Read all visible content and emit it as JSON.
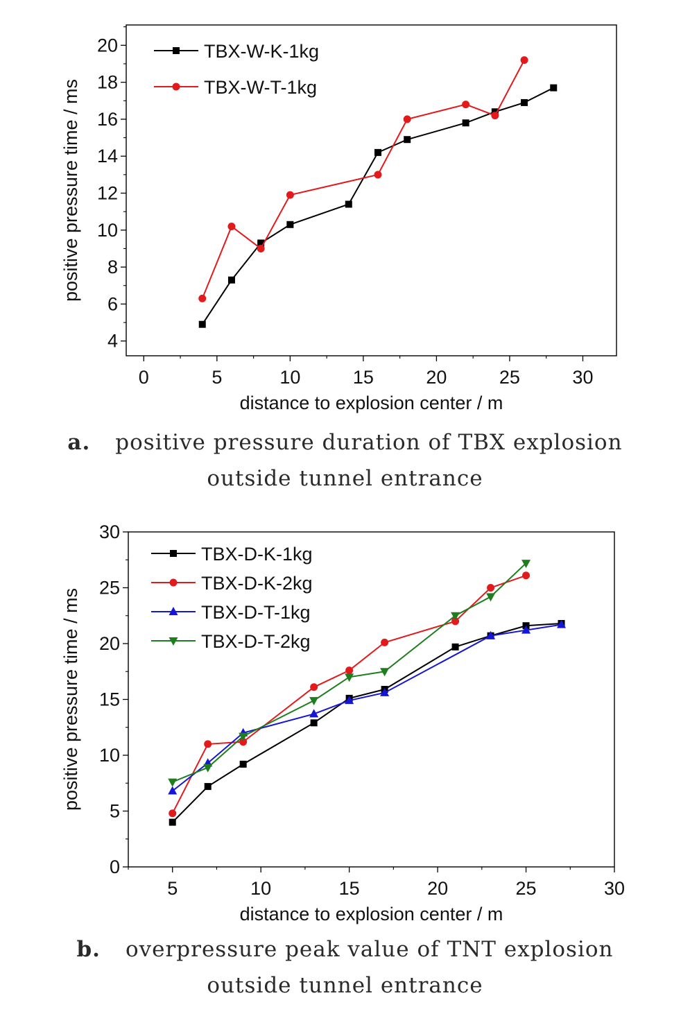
{
  "chart_data": [
    {
      "type": "line",
      "panel": "a",
      "xlabel": "distance to explosion center / m",
      "ylabel": "positive pressure time / ms",
      "xlim": [
        -1.2,
        32.3
      ],
      "ylim": [
        3.2,
        21.1
      ],
      "xticks": [
        0,
        5,
        10,
        15,
        20,
        25,
        30
      ],
      "yticks": [
        4,
        6,
        8,
        10,
        12,
        14,
        16,
        18,
        20
      ],
      "grid": false,
      "legend_position": "top-left",
      "series": [
        {
          "name": "TBX-W-K-1kg",
          "color": "#000000",
          "marker": "square",
          "x": [
            4,
            6,
            8,
            10,
            14,
            16,
            18,
            22,
            24,
            26,
            28
          ],
          "y": [
            4.9,
            7.3,
            9.3,
            10.3,
            11.4,
            14.2,
            14.9,
            15.8,
            16.4,
            16.9,
            17.7
          ]
        },
        {
          "name": "TBX-W-T-1kg",
          "color": "#e31a1c",
          "marker": "circle",
          "x": [
            4,
            6,
            8,
            10,
            16,
            18,
            22,
            24,
            26
          ],
          "y": [
            6.3,
            10.2,
            9.0,
            11.9,
            13.0,
            16.0,
            16.8,
            16.2,
            19.2
          ]
        }
      ]
    },
    {
      "type": "line",
      "panel": "b",
      "xlabel": "distance to explosion center / m",
      "ylabel": "positive pressure time / ms",
      "xlim": [
        2.5,
        30
      ],
      "ylim": [
        0,
        30
      ],
      "xticks": [
        5,
        10,
        15,
        20,
        25,
        30
      ],
      "yticks": [
        0,
        5,
        10,
        15,
        20,
        25,
        30
      ],
      "grid": false,
      "legend_position": "top-left",
      "series": [
        {
          "name": "TBX-D-K-1kg",
          "color": "#000000",
          "marker": "square",
          "x": [
            5,
            7,
            9,
            13,
            15,
            17,
            21,
            23,
            25,
            27
          ],
          "y": [
            4.0,
            7.2,
            9.2,
            12.9,
            15.1,
            15.9,
            19.7,
            20.7,
            21.6,
            21.8
          ]
        },
        {
          "name": "TBX-D-K-2kg",
          "color": "#e31a1c",
          "marker": "circle",
          "x": [
            5,
            7,
            9,
            13,
            15,
            17,
            21,
            23,
            25
          ],
          "y": [
            4.8,
            11.0,
            11.2,
            16.1,
            17.6,
            20.1,
            22.0,
            25.0,
            26.1
          ]
        },
        {
          "name": "TBX-D-T-1kg",
          "color": "#1515d6",
          "marker": "triangle-up",
          "x": [
            5,
            7,
            9,
            13,
            15,
            17,
            23,
            25,
            27
          ],
          "y": [
            6.8,
            9.3,
            12.0,
            13.7,
            14.9,
            15.6,
            20.7,
            21.2,
            21.7
          ]
        },
        {
          "name": "TBX-D-T-2kg",
          "color": "#1e7d1e",
          "marker": "triangle-down",
          "x": [
            5,
            7,
            9,
            13,
            15,
            17,
            21,
            23,
            25
          ],
          "y": [
            7.6,
            8.9,
            11.7,
            14.9,
            17.0,
            17.5,
            22.5,
            24.2,
            27.2
          ]
        }
      ]
    }
  ],
  "captions": {
    "a": {
      "label": "a.",
      "line1": "positive pressure duration of TBX explosion",
      "line2": "outside tunnel entrance"
    },
    "b": {
      "label": "b.",
      "line1": "overpressure peak value of TNT explosion",
      "line2": "outside tunnel entrance"
    }
  }
}
